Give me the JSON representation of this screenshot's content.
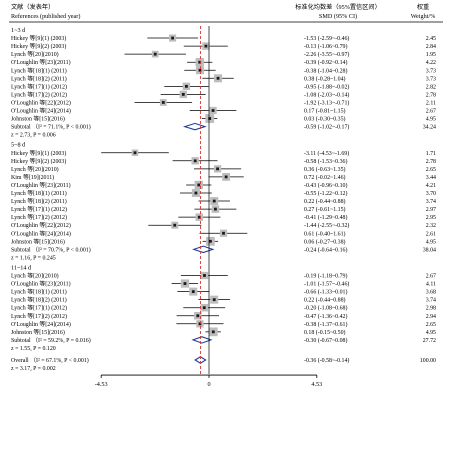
{
  "chart_data": {
    "type": "forest",
    "header": {
      "col1_cn": "文献（发表年）",
      "col1_en": "References (published year)",
      "col2_cn": "标准化均数差（95%置信区间）",
      "col2_en": "SMD (95% CI)",
      "col3_cn": "权重",
      "col3_en": "Weight/%"
    },
    "xlim": [
      -4.53,
      4.53
    ],
    "xticks": [
      "-4.53",
      "0",
      "4.53"
    ],
    "groups": [
      {
        "title": "1~3 d",
        "studies": [
          {
            "label": "Hickey 等[9](1) (2003)",
            "smd": -1.53,
            "lo": -2.59,
            "hi": -0.46,
            "ci": "-1.53 (-2.59~-0.46)",
            "weight": "2.45"
          },
          {
            "label": "Hickey 等[9](2) (2003)",
            "smd": -0.13,
            "lo": -1.06,
            "hi": 0.79,
            "ci": "-0.13 (-1.06~0.79)",
            "weight": "2.84"
          },
          {
            "label": "Lynch 等[20](2010)",
            "smd": -2.26,
            "lo": -3.55,
            "hi": -0.97,
            "ci": "-2.26 (-3.55~-0.97)",
            "weight": "1.95"
          },
          {
            "label": "O'Loughlin 等[23](2011)",
            "smd": -0.39,
            "lo": -0.92,
            "hi": 0.14,
            "ci": "-0.39 (-0.92~0.14)",
            "weight": "4.22"
          },
          {
            "label": "Lynch 等[18](1) (2011)",
            "smd": -0.38,
            "lo": -1.04,
            "hi": 0.28,
            "ci": "-0.38 (-1.04~0.28)",
            "weight": "3.73"
          },
          {
            "label": "Lynch 等[18](2) (2011)",
            "smd": 0.38,
            "lo": -0.28,
            "hi": 1.04,
            "ci": "0.38 (-0.28~1.04)",
            "weight": "3.73"
          },
          {
            "label": "Lynch 等[17](1) (2012)",
            "smd": -0.95,
            "lo": -1.88,
            "hi": -0.02,
            "ci": "-0.95 (-1.88~-0.02)",
            "weight": "2.82"
          },
          {
            "label": "Lynch 等[17](2) (2012)",
            "smd": -1.08,
            "lo": -2.03,
            "hi": -0.14,
            "ci": "-1.08 (-2.03~-0.14)",
            "weight": "2.78"
          },
          {
            "label": "O'Loughlin 等[22](2012)",
            "smd": -1.92,
            "lo": -3.13,
            "hi": -0.71,
            "ci": "-1.92 (-3.13~-0.71)",
            "weight": "2.11"
          },
          {
            "label": "O'Loughlin 等[24](2014)",
            "smd": 0.17,
            "lo": -0.81,
            "hi": 1.15,
            "ci": "0.17 (-0.81~1.15)",
            "weight": "2.67"
          },
          {
            "label": "Johnston 等[15](2016)",
            "smd": 0.03,
            "lo": -0.3,
            "hi": 0.35,
            "ci": "0.03 (-0.30~0.35)",
            "weight": "4.95"
          }
        ],
        "subtotal": {
          "label": "Subtotal （I² = 71.1%, P < 0.001)",
          "smd": -0.59,
          "lo": -1.02,
          "hi": -0.17,
          "ci": "-0.59 (-1.02~-0.17)",
          "weight": "34.24",
          "z": "z = 2.73, P = 0.006"
        }
      },
      {
        "title": "5~8 d",
        "studies": [
          {
            "label": "Hickey 等[9](1) (2003)",
            "smd": -3.11,
            "lo": -4.53,
            "hi": -1.69,
            "ci": "-3.11 (-4.53~-1.69)",
            "weight": "1.71"
          },
          {
            "label": "Hickey 等[9](2) (2003)",
            "smd": -0.58,
            "lo": -1.53,
            "hi": 0.36,
            "ci": "-0.58 (-1.53~0.36)",
            "weight": "2.78"
          },
          {
            "label": "Lynch 等[20](2010)",
            "smd": 0.36,
            "lo": -0.63,
            "hi": 1.35,
            "ci": "0.36 (-0.63~1.35)",
            "weight": "2.65"
          },
          {
            "label": "Kim 等[19](2011)",
            "smd": 0.72,
            "lo": -0.02,
            "hi": 1.46,
            "ci": "0.72 (-0.02~1.46)",
            "weight": "3.44"
          },
          {
            "label": "O'Loughlin 等[23](2011)",
            "smd": -0.43,
            "lo": -0.96,
            "hi": 0.1,
            "ci": "-0.43 (-0.96~0.10)",
            "weight": "4.21"
          },
          {
            "label": "Lynch 等[18](1) (2011)",
            "smd": -0.55,
            "lo": -1.22,
            "hi": 0.12,
            "ci": "-0.55 (-1.22~0.12)",
            "weight": "3.70"
          },
          {
            "label": "Lynch 等[18](2) (2011)",
            "smd": 0.22,
            "lo": -0.44,
            "hi": 0.88,
            "ci": "0.22 (-0.44~0.88)",
            "weight": "3.74"
          },
          {
            "label": "Lynch 等[17](1) (2012)",
            "smd": 0.27,
            "lo": -0.61,
            "hi": 1.15,
            "ci": "0.27 (-0.61~1.15)",
            "weight": "2.97"
          },
          {
            "label": "Lynch 等[17](2) (2012)",
            "smd": -0.41,
            "lo": -1.29,
            "hi": 0.48,
            "ci": "-0.41 (-1.29~0.48)",
            "weight": "2.95"
          },
          {
            "label": "O'Loughlin 等[22](2012)",
            "smd": -1.44,
            "lo": -2.55,
            "hi": -0.32,
            "ci": "-1.44 (-2.55~-0.32)",
            "weight": "2.32"
          },
          {
            "label": "O'Loughlin 等[24](2014)",
            "smd": 0.61,
            "lo": -0.4,
            "hi": 1.61,
            "ci": "0.61 (-0.40~1.61)",
            "weight": "2.61"
          },
          {
            "label": "Johnston 等[15](2016)",
            "smd": 0.06,
            "lo": -0.27,
            "hi": 0.38,
            "ci": "0.06 (-0.27~0.38)",
            "weight": "4.95"
          }
        ],
        "subtotal": {
          "label": "Subtotal （I² = 70.7%, P < 0.001)",
          "smd": -0.24,
          "lo": -0.64,
          "hi": 0.16,
          "ci": "-0.24 (-0.64~0.16)",
          "weight": "38.04",
          "z": "z = 1.16, P = 0.245"
        }
      },
      {
        "title": "11~14 d",
        "studies": [
          {
            "label": "Lynch 等[20](2010)",
            "smd": -0.19,
            "lo": -1.18,
            "hi": 0.79,
            "ci": "-0.19 (-1.18~0.79)",
            "weight": "2.67"
          },
          {
            "label": "O'Loughlin 等[23](2011)",
            "smd": -1.01,
            "lo": -1.57,
            "hi": -0.46,
            "ci": "-1.01 (-1.57~-0.46)",
            "weight": "4.11"
          },
          {
            "label": "Lynch 等[18](1) (2011)",
            "smd": -0.66,
            "lo": -1.33,
            "hi": 0.01,
            "ci": "-0.66 (-1.33~0.01)",
            "weight": "3.68"
          },
          {
            "label": "Lynch 等[18](2) (2011)",
            "smd": 0.22,
            "lo": -0.44,
            "hi": 0.88,
            "ci": "0.22 (-0.44~0.88)",
            "weight": "3.74"
          },
          {
            "label": "Lynch 等[17](1) (2012)",
            "smd": -0.2,
            "lo": -1.08,
            "hi": 0.68,
            "ci": "-0.20 (-1.08~0.68)",
            "weight": "2.98"
          },
          {
            "label": "Lynch 等[17](2) (2012)",
            "smd": -0.47,
            "lo": -1.36,
            "hi": 0.42,
            "ci": "-0.47 (-1.36~0.42)",
            "weight": "2.94"
          },
          {
            "label": "O'Loughlin 等[24](2014)",
            "smd": -0.38,
            "lo": -1.37,
            "hi": 0.61,
            "ci": "-0.38 (-1.37~0.61)",
            "weight": "2.65"
          },
          {
            "label": "Johnston 等[15](2016)",
            "smd": 0.18,
            "lo": -0.15,
            "hi": 0.5,
            "ci": "0.18 (-0.15~0.50)",
            "weight": "4.95"
          }
        ],
        "subtotal": {
          "label": "Subtotal （I² = 59.2%, P = 0.016)",
          "smd": -0.3,
          "lo": -0.67,
          "hi": 0.08,
          "ci": "-0.30 (-0.67~0.08)",
          "weight": "27.72",
          "z": "z = 1.55, P = 0.120"
        }
      }
    ],
    "overall": {
      "label": "Overall （I² = 67.1%, P < 0.001)",
      "smd": -0.36,
      "lo": -0.58,
      "hi": -0.14,
      "ci": "-0.36 (-0.58~-0.14)",
      "weight": "100.00",
      "z": "z = 3.17, P = 0.002"
    },
    "colors": {
      "marker": "#1a1a1a",
      "box": "#bdbdbd",
      "diamond": "#1f3d99",
      "reference": "#d43333",
      "line": "#000000"
    }
  }
}
